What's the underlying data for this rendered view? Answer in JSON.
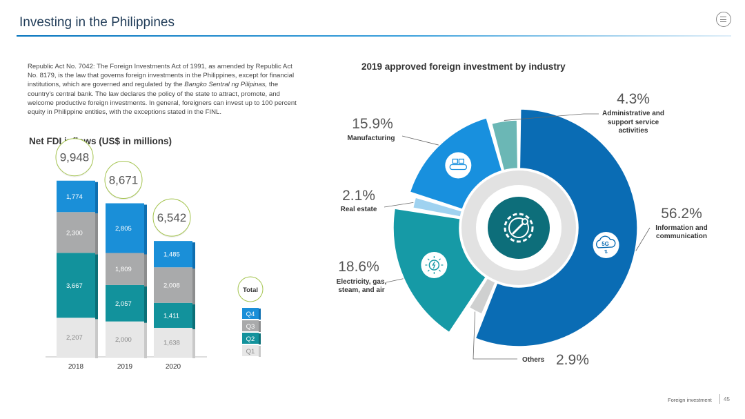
{
  "header": {
    "title": "Investing in the Philippines",
    "menu_icon": "menu-icon"
  },
  "intro": {
    "text_before": "Republic Act No. 7042: The Foreign Investments Act of 1991, as amended by Republic Act No. 8179, is the law that governs foreign investments in the Philippines, except for financial institutions, which are governed and regulated by the ",
    "italic": "Bangko Sentral ng Pilipinas,",
    "text_after": " the country's central bank. The law declares the policy of the state to attract, promote, and welcome productive foreign investments. In general, foreigners can invest up to 100 percent equity in Philippine entities, with the exceptions stated in the FINL."
  },
  "fdi_title": "Net FDI inflows (US$ in millions)",
  "industry_title": "2019 approved foreign investment by industry",
  "footer": {
    "section": "Foreign investment",
    "page": "45"
  },
  "colors": {
    "q4": "#1a8fd8",
    "q3": "#a9aaab",
    "q2": "#12929c",
    "q1": "#e7e7e7",
    "info": "#0a6cb4",
    "admin": "#6bb7b5",
    "manuf": "#1890de",
    "real": "#9fd2f0",
    "elec": "#169aa6",
    "others": "#cfd0d0"
  },
  "chart_data": [
    {
      "type": "bar",
      "stacked": true,
      "title": "Net FDI inflows (US$ in millions)",
      "categories": [
        "2018",
        "2019",
        "2020"
      ],
      "series": [
        {
          "name": "Q1",
          "values": [
            2207,
            2000,
            1638
          ]
        },
        {
          "name": "Q2",
          "values": [
            3667,
            2057,
            1411
          ]
        },
        {
          "name": "Q3",
          "values": [
            2300,
            1809,
            2008
          ]
        },
        {
          "name": "Q4",
          "values": [
            1774,
            2805,
            1485
          ]
        }
      ],
      "totals": [
        9948,
        8671,
        6542
      ],
      "total_labels": [
        "9,948",
        "8,671",
        "6,542"
      ],
      "value_labels": [
        [
          "2,207",
          "3,667",
          "2,300",
          "1,774"
        ],
        [
          "2,000",
          "2,057",
          "1,809",
          "2,805"
        ],
        [
          "1,638",
          "1,411",
          "2,008",
          "1,485"
        ]
      ],
      "legend": [
        "Total",
        "Q4",
        "Q3",
        "Q2",
        "Q1"
      ],
      "legend_position": "right"
    },
    {
      "type": "pie",
      "donut": true,
      "title": "2019 approved foreign investment by industry",
      "slices": [
        {
          "label": "Information and communication",
          "value": 56.2,
          "value_label": "56.2%",
          "icon": "5g-cloud-icon"
        },
        {
          "label": "Others",
          "value": 2.9,
          "value_label": "2.9%"
        },
        {
          "label": "Electricity, gas, steam, and air",
          "value": 18.6,
          "value_label": "18.6%",
          "icon": "lightbulb-icon"
        },
        {
          "label": "Real estate",
          "value": 2.1,
          "value_label": "2.1%"
        },
        {
          "label": "Manufacturing",
          "value": 15.9,
          "value_label": "15.9%",
          "icon": "factory-icon"
        },
        {
          "label": "Administrative and support service activities",
          "value": 4.3,
          "value_label": "4.3%"
        }
      ],
      "center_icon": "gear-wrench-icon"
    }
  ]
}
